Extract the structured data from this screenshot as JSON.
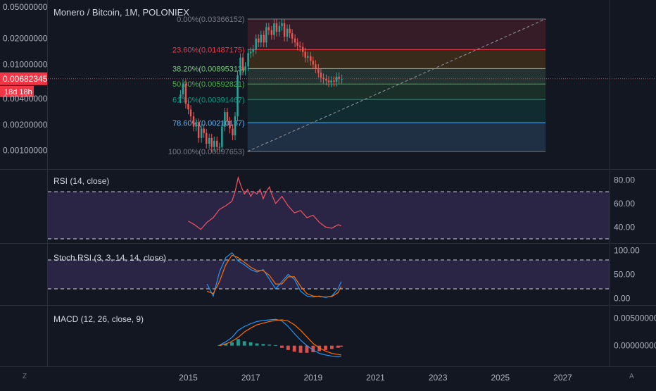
{
  "header": {
    "symbol_title": "Monero / Bitcoin, 1M, POLONIEX"
  },
  "price_axis": {
    "ticks": [
      "0.05000000",
      "0.02000000",
      "0.01000000",
      "0.00400000",
      "0.00200000",
      "0.00100000"
    ],
    "tick_values": [
      0.05,
      0.02,
      0.01,
      0.004,
      0.002,
      0.001
    ],
    "last_price_label": "0.00682345",
    "last_price": 0.00682345,
    "countdown_label": "18d 18h"
  },
  "time_axis": {
    "labels": [
      "2015",
      "2017",
      "2019",
      "2021",
      "2023",
      "2025",
      "2027"
    ]
  },
  "colors": {
    "background": "#131722",
    "up": "#26a69a",
    "down": "#ef5350",
    "rsi_line": "#f7525f",
    "band_fill": "#7e57c2",
    "stoch_k": "#2196f3",
    "stoch_d": "#ff6d00",
    "macd_line": "#2196f3",
    "signal_line": "#ff6d00",
    "last_price": "#f23645"
  },
  "corner_buttons": {
    "left_label": "Z",
    "right_label": "A"
  },
  "fibonacci": {
    "levels": [
      {
        "label": "0.00%(0.03366152)",
        "value": 0.03366152,
        "color": "#787b86"
      },
      {
        "label": "23.60%(0.01487175)",
        "value": 0.01487175,
        "color": "#f23645"
      },
      {
        "label": "38.20%(0.00895313)",
        "value": 0.00895313,
        "color": "#81c784"
      },
      {
        "label": "50.00%(0.00592821)",
        "value": 0.00592821,
        "color": "#4caf50"
      },
      {
        "label": "61.80%(0.00391467)",
        "value": 0.00391467,
        "color": "#089981"
      },
      {
        "label": "78.60%(0.00210137)",
        "value": 0.00210137,
        "color": "#64b5f6"
      },
      {
        "label": "100.00%(0.00097653)",
        "value": 0.00097653,
        "color": "#787b86"
      }
    ]
  },
  "chart_data": [
    {
      "type": "candlestick",
      "title": "Monero / Bitcoin, 1M, POLONIEX",
      "scale": "log",
      "ylim": [
        0.0008,
        0.05
      ],
      "xlim": [
        2010.5,
        2028.5
      ],
      "x": [
        2014.75,
        2014.83,
        2014.92,
        2015.0,
        2015.08,
        2015.17,
        2015.25,
        2015.33,
        2015.42,
        2015.5,
        2015.58,
        2015.67,
        2015.75,
        2015.83,
        2015.92,
        2016.0,
        2016.08,
        2016.17,
        2016.25,
        2016.33,
        2016.42,
        2016.5,
        2016.58,
        2016.67,
        2016.75,
        2016.83,
        2016.92,
        2017.0,
        2017.08,
        2017.17,
        2017.25,
        2017.33,
        2017.42,
        2017.5,
        2017.58,
        2017.67,
        2017.75,
        2017.83,
        2017.92,
        2018.0,
        2018.08,
        2018.17,
        2018.25,
        2018.33,
        2018.42,
        2018.5,
        2018.58,
        2018.67,
        2018.75,
        2018.83,
        2018.92,
        2019.0,
        2019.08,
        2019.17,
        2019.25,
        2019.33,
        2019.42,
        2019.5,
        2019.58,
        2019.67,
        2019.75,
        2019.83,
        2019.92
      ],
      "close": [
        0.0045,
        0.006,
        0.0035,
        0.003,
        0.0025,
        0.0019,
        0.0021,
        0.0014,
        0.0018,
        0.0016,
        0.0012,
        0.0014,
        0.0011,
        0.0013,
        0.0011,
        0.0011,
        0.0019,
        0.0028,
        0.0022,
        0.0018,
        0.0015,
        0.0025,
        0.0075,
        0.012,
        0.0085,
        0.0095,
        0.0135,
        0.014,
        0.015,
        0.02,
        0.018,
        0.022,
        0.018,
        0.027,
        0.025,
        0.022,
        0.03,
        0.024,
        0.028,
        0.03,
        0.021,
        0.026,
        0.023,
        0.02,
        0.018,
        0.0165,
        0.016,
        0.014,
        0.012,
        0.0125,
        0.011,
        0.01,
        0.009,
        0.008,
        0.007,
        0.0068,
        0.0065,
        0.0062,
        0.0065,
        0.0063,
        0.0072,
        0.0068,
        0.0068
      ]
    },
    {
      "type": "line",
      "title": "RSI (14, close)",
      "ylim": [
        30,
        85
      ],
      "ticks": [
        "80.00",
        "60.00",
        "40.00"
      ],
      "tick_values": [
        80,
        60,
        40
      ],
      "band": [
        30,
        70
      ],
      "x": [
        2015.0,
        2015.2,
        2015.4,
        2015.6,
        2015.8,
        2016.0,
        2016.2,
        2016.4,
        2016.5,
        2016.6,
        2016.7,
        2016.8,
        2016.9,
        2017.0,
        2017.1,
        2017.2,
        2017.3,
        2017.4,
        2017.5,
        2017.6,
        2017.7,
        2017.8,
        2018.0,
        2018.2,
        2018.4,
        2018.6,
        2018.8,
        2019.0,
        2019.2,
        2019.4,
        2019.6,
        2019.8,
        2019.9
      ],
      "values": [
        45,
        42,
        38,
        44,
        48,
        55,
        58,
        62,
        70,
        82,
        74,
        68,
        72,
        66,
        70,
        68,
        72,
        64,
        70,
        74,
        66,
        60,
        66,
        58,
        52,
        54,
        48,
        50,
        44,
        40,
        39,
        42,
        41
      ]
    },
    {
      "type": "line",
      "title": "Stoch RSI (3, 3, 14, 14, close)",
      "ylim": [
        -5,
        105
      ],
      "ticks": [
        "100.00",
        "50.00",
        "0.00"
      ],
      "tick_values": [
        100,
        50,
        0
      ],
      "band": [
        20,
        80
      ],
      "x": [
        2015.6,
        2015.8,
        2016.0,
        2016.2,
        2016.4,
        2016.6,
        2016.8,
        2017.0,
        2017.2,
        2017.4,
        2017.6,
        2017.8,
        2018.0,
        2018.2,
        2018.4,
        2018.6,
        2018.8,
        2019.0,
        2019.2,
        2019.4,
        2019.6,
        2019.8,
        2019.9
      ],
      "series": [
        {
          "values": [
            30,
            5,
            55,
            85,
            95,
            78,
            70,
            60,
            55,
            60,
            40,
            20,
            35,
            50,
            40,
            15,
            5,
            3,
            5,
            2,
            5,
            20,
            35
          ]
        },
        {
          "values": [
            15,
            10,
            35,
            70,
            90,
            85,
            75,
            65,
            58,
            58,
            48,
            30,
            30,
            45,
            45,
            25,
            10,
            5,
            4,
            3,
            4,
            12,
            25
          ]
        }
      ]
    },
    {
      "type": "bar",
      "title": "MACD (12, 26, close, 9)",
      "ylim": [
        -0.003,
        0.0065
      ],
      "ticks": [
        "0.00500000",
        "0.00000000"
      ],
      "tick_values": [
        0.005,
        0.0
      ],
      "x": [
        2016.0,
        2016.2,
        2016.4,
        2016.6,
        2016.8,
        2017.0,
        2017.2,
        2017.4,
        2017.6,
        2017.8,
        2018.0,
        2018.2,
        2018.4,
        2018.6,
        2018.8,
        2019.0,
        2019.2,
        2019.4,
        2019.6,
        2019.8,
        2019.9
      ],
      "histogram": [
        0.0001,
        0.0004,
        0.0006,
        0.0012,
        0.0008,
        0.0006,
        0.0004,
        0.0003,
        0.0002,
        0.0001,
        -0.0004,
        -0.0008,
        -0.0011,
        -0.0013,
        -0.0013,
        -0.0012,
        -0.001,
        -0.0008,
        -0.0006,
        -0.0004,
        -0.0002
      ],
      "series": [
        {
          "values": [
            0.0001,
            0.0007,
            0.0015,
            0.0028,
            0.0035,
            0.004,
            0.0044,
            0.0046,
            0.0047,
            0.0048,
            0.0045,
            0.0035,
            0.0022,
            0.001,
            0.0,
            -0.0008,
            -0.0014,
            -0.0017,
            -0.0019,
            -0.002,
            -0.0019
          ]
        },
        {
          "values": [
            0.0,
            0.0003,
            0.0008,
            0.0015,
            0.0025,
            0.0032,
            0.0038,
            0.0041,
            0.0044,
            0.0046,
            0.0047,
            0.0045,
            0.0038,
            0.0028,
            0.0016,
            0.0004,
            -0.0004,
            -0.001,
            -0.0014,
            -0.0016,
            -0.0017
          ]
        }
      ]
    }
  ]
}
